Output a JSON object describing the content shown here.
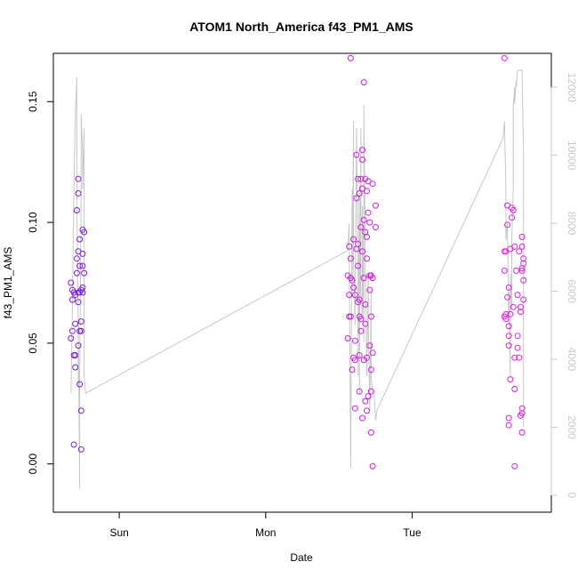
{
  "chart_data": {
    "type": "scatter",
    "title": "ATOM1 North_America f43_PM1_AMS",
    "xlabel": "Date",
    "ylabel": "f43_PM1_AMS",
    "x_ticks": [
      "Sun",
      "Mon",
      "Tue"
    ],
    "y_ticks": [
      "0.00",
      "0.05",
      "0.10",
      "0.15"
    ],
    "ylim": [
      -0.02,
      0.17
    ],
    "right_axis": {
      "ticks": [
        "0",
        "2000",
        "4000",
        "6000",
        "8000",
        "10000",
        "12000"
      ],
      "ylim": [
        -500,
        13000
      ],
      "color": "#c8c8c8"
    },
    "x_unit": "days since Sun 00:00",
    "xlim": [
      -0.45,
      2.95
    ],
    "grid": false,
    "colors": {
      "line": "#c8c8c8",
      "point_early": "#7a1fe6",
      "point_late": "#e01ee0",
      "axis": "#000000"
    },
    "series": [
      {
        "axis": "left",
        "kind": "scatter",
        "points": [
          [
            -0.33,
            0.075
          ],
          [
            -0.33,
            0.052
          ],
          [
            -0.32,
            0.072
          ],
          [
            -0.32,
            0.068
          ],
          [
            -0.32,
            0.055
          ],
          [
            -0.31,
            0.045
          ],
          [
            -0.31,
            0.071
          ],
          [
            -0.31,
            0.008
          ],
          [
            -0.3,
            0.04
          ],
          [
            -0.3,
            0.045
          ],
          [
            -0.3,
            0.07
          ],
          [
            -0.3,
            0.058
          ],
          [
            -0.29,
            0.079
          ],
          [
            -0.29,
            0.085
          ],
          [
            -0.29,
            0.105
          ],
          [
            -0.28,
            0.071
          ],
          [
            -0.28,
            0.112
          ],
          [
            -0.28,
            0.118
          ],
          [
            -0.28,
            0.088
          ],
          [
            -0.28,
            0.049
          ],
          [
            -0.28,
            0.067
          ],
          [
            -0.27,
            0.071
          ],
          [
            -0.27,
            0.055
          ],
          [
            -0.27,
            0.033
          ],
          [
            -0.27,
            0.082
          ],
          [
            -0.27,
            0.093
          ],
          [
            -0.26,
            0.055
          ],
          [
            -0.26,
            0.059
          ],
          [
            -0.26,
            0.022
          ],
          [
            -0.26,
            0.006
          ],
          [
            -0.26,
            0.072
          ],
          [
            -0.25,
            0.087
          ],
          [
            -0.25,
            0.097
          ],
          [
            -0.25,
            0.082
          ],
          [
            -0.25,
            0.073
          ],
          [
            -0.24,
            0.096
          ],
          [
            -0.24,
            0.079
          ],
          [
            -0.25,
            0.071
          ],
          [
            1.56,
            0.052
          ],
          [
            1.56,
            0.078
          ],
          [
            1.57,
            0.09
          ],
          [
            1.57,
            0.061
          ],
          [
            1.57,
            0.07
          ],
          [
            1.58,
            0.077
          ],
          [
            1.58,
            0.061
          ],
          [
            1.58,
            0.168
          ],
          [
            1.58,
            0.085
          ],
          [
            1.59,
            0.039
          ],
          [
            1.59,
            0.076
          ],
          [
            1.6,
            0.093
          ],
          [
            1.6,
            0.044
          ],
          [
            1.6,
            0.073
          ],
          [
            1.61,
            0.043
          ],
          [
            1.61,
            0.023
          ],
          [
            1.61,
            0.051
          ],
          [
            1.61,
            0.07
          ],
          [
            1.62,
            0.089
          ],
          [
            1.62,
            0.11
          ],
          [
            1.62,
            0.128
          ],
          [
            1.63,
            0.118
          ],
          [
            1.63,
            0.067
          ],
          [
            1.63,
            0.091
          ],
          [
            1.63,
            0.082
          ],
          [
            1.64,
            0.112
          ],
          [
            1.64,
            0.068
          ],
          [
            1.64,
            0.045
          ],
          [
            1.64,
            0.061
          ],
          [
            1.64,
            0.03
          ],
          [
            1.65,
            0.118
          ],
          [
            1.65,
            0.055
          ],
          [
            1.65,
            0.098
          ],
          [
            1.65,
            0.06
          ],
          [
            1.66,
            0.126
          ],
          [
            1.66,
            0.114
          ],
          [
            1.66,
            0.13
          ],
          [
            1.66,
            0.019
          ],
          [
            1.66,
            0.088
          ],
          [
            1.67,
            0.101
          ],
          [
            1.67,
            0.043
          ],
          [
            1.67,
            0.077
          ],
          [
            1.67,
            0.158
          ],
          [
            1.68,
            0.118
          ],
          [
            1.68,
            0.058
          ],
          [
            1.68,
            0.096
          ],
          [
            1.68,
            0.026
          ],
          [
            1.68,
            0.066
          ],
          [
            1.69,
            0.113
          ],
          [
            1.69,
            0.085
          ],
          [
            1.69,
            0.094
          ],
          [
            1.69,
            0.044
          ],
          [
            1.69,
            0.022
          ],
          [
            1.7,
            0.104
          ],
          [
            1.7,
            0.117
          ],
          [
            1.7,
            0.028
          ],
          [
            1.71,
            0.072
          ],
          [
            1.71,
            0.078
          ],
          [
            1.71,
            0.049
          ],
          [
            1.71,
            0.1
          ],
          [
            1.72,
            0.03
          ],
          [
            1.72,
            0.013
          ],
          [
            1.72,
            0.078
          ],
          [
            1.72,
            0.039
          ],
          [
            1.72,
            0.061
          ],
          [
            1.73,
            0.046
          ],
          [
            1.73,
            0.116
          ],
          [
            1.73,
            0.077
          ],
          [
            1.73,
            -0.001
          ],
          [
            1.75,
            0.107
          ],
          [
            1.75,
            0.098
          ],
          [
            2.63,
            0.168
          ],
          [
            2.63,
            0.088
          ],
          [
            2.63,
            0.08
          ],
          [
            2.63,
            0.061
          ],
          [
            2.64,
            0.088
          ],
          [
            2.64,
            0.062
          ],
          [
            2.64,
            0.06
          ],
          [
            2.65,
            0.099
          ],
          [
            2.65,
            0.107
          ],
          [
            2.65,
            0.069
          ],
          [
            2.66,
            0.073
          ],
          [
            2.66,
            0.057
          ],
          [
            2.66,
            0.053
          ],
          [
            2.66,
            0.049
          ],
          [
            2.66,
            0.019
          ],
          [
            2.66,
            0.016
          ],
          [
            2.67,
            0.089
          ],
          [
            2.67,
            0.062
          ],
          [
            2.67,
            0.035
          ],
          [
            2.68,
            0.102
          ],
          [
            2.68,
            0.106
          ],
          [
            2.69,
            0.105
          ],
          [
            2.69,
            0.065
          ],
          [
            2.7,
            0.031
          ],
          [
            2.7,
            0.044
          ],
          [
            2.7,
            -0.001
          ],
          [
            2.7,
            0.09
          ],
          [
            2.71,
            0.08
          ],
          [
            2.72,
            0.053
          ],
          [
            2.72,
            0.048
          ],
          [
            2.72,
            0.07
          ],
          [
            2.73,
            0.044
          ],
          [
            2.73,
            0.088
          ],
          [
            2.74,
            0.063
          ],
          [
            2.74,
            0.065
          ],
          [
            2.74,
            0.02
          ],
          [
            2.75,
            0.023
          ],
          [
            2.75,
            0.021
          ],
          [
            2.75,
            0.013
          ],
          [
            2.75,
            0.081
          ],
          [
            2.75,
            0.09
          ],
          [
            2.75,
            0.094
          ],
          [
            2.75,
            0.08
          ],
          [
            2.76,
            0.085
          ],
          [
            2.76,
            0.068
          ],
          [
            2.76,
            0.083
          ],
          [
            2.76,
            0.076
          ]
        ]
      },
      {
        "axis": "right",
        "kind": "line",
        "points": [
          [
            -0.33,
            3000
          ],
          [
            -0.32,
            5500
          ],
          [
            -0.31,
            9000
          ],
          [
            -0.3,
            11200
          ],
          [
            -0.29,
            12300
          ],
          [
            -0.29,
            8500
          ],
          [
            -0.28,
            5000
          ],
          [
            -0.28,
            3200
          ],
          [
            -0.28,
            5200
          ],
          [
            -0.27,
            200
          ],
          [
            -0.27,
            3500
          ],
          [
            -0.26,
            9000
          ],
          [
            -0.26,
            11200
          ],
          [
            -0.25,
            10000
          ],
          [
            -0.25,
            9000
          ],
          [
            -0.24,
            10800
          ],
          [
            -0.24,
            3500
          ],
          [
            -0.23,
            3000
          ],
          [
            1.56,
            7200
          ],
          [
            1.57,
            8000
          ],
          [
            1.57,
            7200
          ],
          [
            1.58,
            800
          ],
          [
            1.59,
            9000
          ],
          [
            1.59,
            6000
          ],
          [
            1.6,
            11000
          ],
          [
            1.6,
            7000
          ],
          [
            1.61,
            5000
          ],
          [
            1.62,
            10800
          ],
          [
            1.63,
            6500
          ],
          [
            1.63,
            3500
          ],
          [
            1.64,
            9200
          ],
          [
            1.64,
            3000
          ],
          [
            1.65,
            10800
          ],
          [
            1.65,
            6000
          ],
          [
            1.66,
            5200
          ],
          [
            1.66,
            8500
          ],
          [
            1.67,
            4500
          ],
          [
            1.67,
            11500
          ],
          [
            1.68,
            7000
          ],
          [
            1.69,
            3500
          ],
          [
            1.7,
            6500
          ],
          [
            1.7,
            5200
          ],
          [
            1.71,
            2500
          ],
          [
            1.72,
            6000
          ],
          [
            1.72,
            3500
          ],
          [
            1.73,
            3000
          ],
          [
            1.74,
            3000
          ],
          [
            1.75,
            2200
          ],
          [
            1.76,
            2500
          ],
          [
            2.62,
            10500
          ],
          [
            2.63,
            11000
          ],
          [
            2.64,
            9000
          ],
          [
            2.64,
            7500
          ],
          [
            2.65,
            8000
          ],
          [
            2.66,
            5000
          ],
          [
            2.66,
            6000
          ],
          [
            2.67,
            3500
          ],
          [
            2.67,
            6500
          ],
          [
            2.68,
            5500
          ],
          [
            2.68,
            7500
          ],
          [
            2.69,
            9000
          ],
          [
            2.69,
            11500
          ],
          [
            2.7,
            12000
          ],
          [
            2.7,
            11500
          ],
          [
            2.71,
            12200
          ],
          [
            2.71,
            12000
          ],
          [
            2.72,
            12500
          ],
          [
            2.73,
            12500
          ],
          [
            2.74,
            12500
          ],
          [
            2.75,
            12500
          ],
          [
            2.76,
            10000
          ],
          [
            2.76,
            2000
          ]
        ]
      }
    ]
  }
}
